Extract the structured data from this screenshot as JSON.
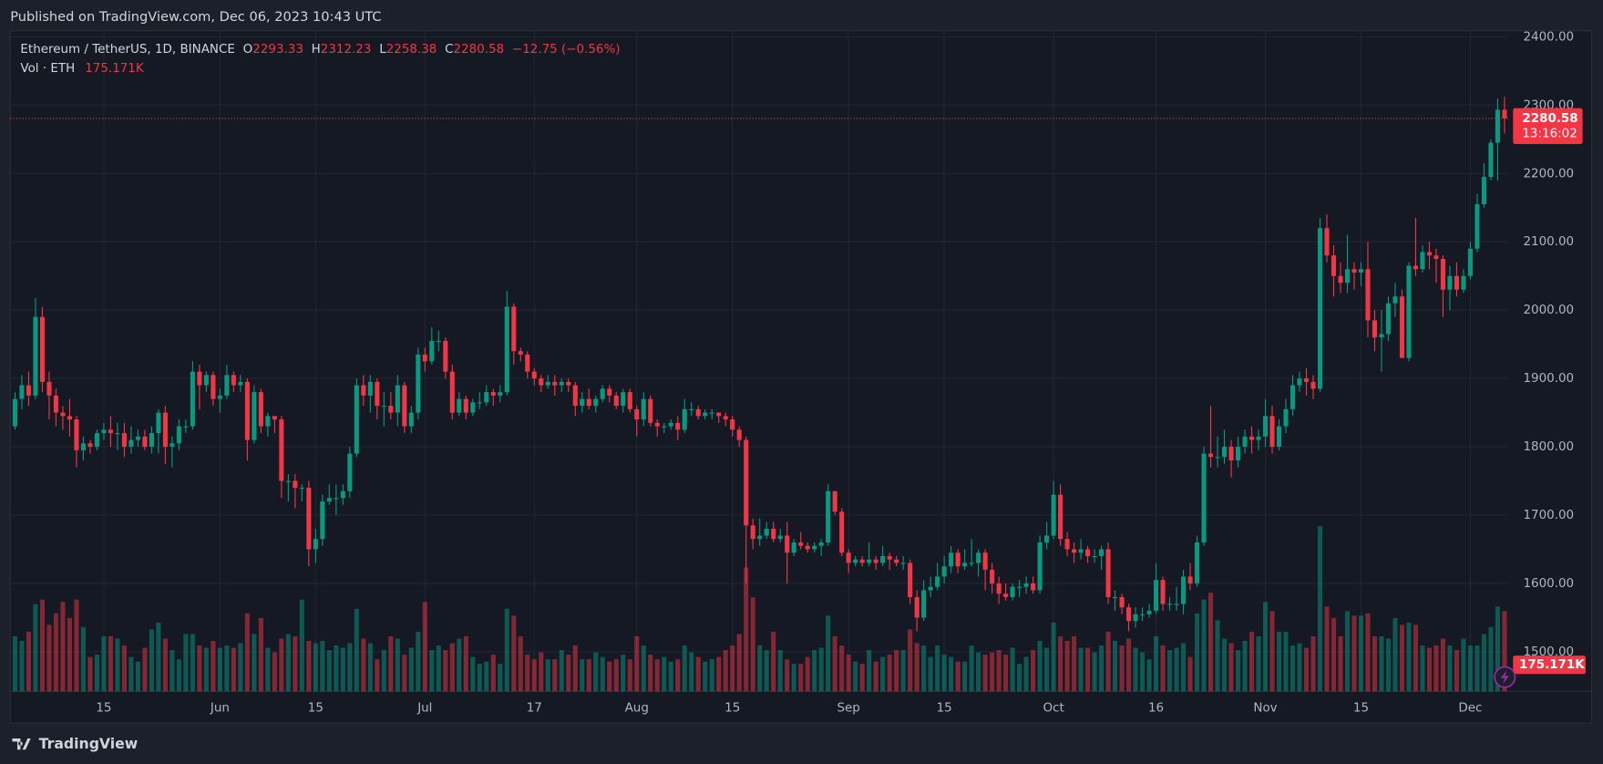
{
  "chart_data": {
    "type": "candlestick",
    "title": "Published on TradingView.com, Dec 06, 2023 10:43 UTC",
    "symbol": "Ethereum / TetherUS, 1D, BINANCE",
    "ohlc_labels": [
      "O",
      "H",
      "L",
      "C"
    ],
    "change": "−12.75 (−0.56%)",
    "volume_title": "Vol · ETH",
    "volume_last_label": "175.171K",
    "countdown": "13:16:02",
    "brand": "TradingView",
    "up_color": "#089981",
    "down_color": "#f23645",
    "grid": true,
    "ylim": [
      1442,
      2409
    ],
    "yticks": [
      {
        "value": 1500,
        "label": "1500.00"
      },
      {
        "value": 1600,
        "label": "1600.00"
      },
      {
        "value": 1700,
        "label": "1700.00"
      },
      {
        "value": 1800,
        "label": "1800.00"
      },
      {
        "value": 1900,
        "label": "1900.00"
      },
      {
        "value": 2000,
        "label": "2000.00"
      },
      {
        "value": 2100,
        "label": "2100.00"
      },
      {
        "value": 2200,
        "label": "2200.00"
      },
      {
        "value": 2300,
        "label": "2300.00"
      },
      {
        "value": 2400,
        "label": "2400.00"
      }
    ],
    "xlim": [
      -0.7,
      218.5
    ],
    "xticks": [
      {
        "value": 13,
        "label": "15"
      },
      {
        "value": 30,
        "label": "Jun"
      },
      {
        "value": 44,
        "label": "15"
      },
      {
        "value": 60,
        "label": "Jul"
      },
      {
        "value": 76,
        "label": "17"
      },
      {
        "value": 91,
        "label": "Aug"
      },
      {
        "value": 105,
        "label": "15"
      },
      {
        "value": 122,
        "label": "Sep"
      },
      {
        "value": 136,
        "label": "15"
      },
      {
        "value": 152,
        "label": "Oct"
      },
      {
        "value": 167,
        "label": "16"
      },
      {
        "value": 183,
        "label": "Nov"
      },
      {
        "value": 197,
        "label": "15"
      },
      {
        "value": 213,
        "label": "Dec"
      }
    ],
    "open": [
      1830,
      1870,
      1890,
      1875,
      1990,
      1895,
      1875,
      1850,
      1845,
      1840,
      1795,
      1805,
      1800,
      1820,
      1825,
      1820,
      1820,
      1800,
      1810,
      1815,
      1800,
      1820,
      1850,
      1800,
      1805,
      1830,
      1830,
      1910,
      1890,
      1905,
      1870,
      1875,
      1905,
      1890,
      1895,
      1810,
      1880,
      1830,
      1845,
      1840,
      1750,
      1750,
      1740,
      1740,
      1650,
      1665,
      1720,
      1725,
      1725,
      1735,
      1790,
      1890,
      1875,
      1895,
      1860,
      1860,
      1850,
      1890,
      1830,
      1850,
      1935,
      1925,
      1955,
      1955,
      1910,
      1850,
      1870,
      1850,
      1865,
      1865,
      1880,
      1875,
      1880,
      2005,
      1940,
      1935,
      1910,
      1900,
      1890,
      1895,
      1890,
      1895,
      1890,
      1860,
      1870,
      1860,
      1870,
      1885,
      1875,
      1860,
      1880,
      1855,
      1840,
      1870,
      1835,
      1830,
      1830,
      1835,
      1825,
      1855,
      1855,
      1845,
      1850,
      1850,
      1845,
      1840,
      1825,
      1810,
      1685,
      1665,
      1670,
      1680,
      1665,
      1670,
      1645,
      1660,
      1655,
      1650,
      1655,
      1660,
      1735,
      1705,
      1645,
      1630,
      1635,
      1630,
      1635,
      1630,
      1640,
      1635,
      1630,
      1630,
      1580,
      1550,
      1590,
      1595,
      1610,
      1625,
      1645,
      1625,
      1630,
      1630,
      1645,
      1620,
      1600,
      1585,
      1580,
      1595,
      1595,
      1600,
      1590,
      1660,
      1670,
      1730,
      1665,
      1650,
      1645,
      1650,
      1640,
      1640,
      1650,
      1580,
      1580,
      1565,
      1545,
      1555,
      1555,
      1560,
      1605,
      1570,
      1570,
      1570,
      1610,
      1600,
      1660,
      1790,
      1785,
      1785,
      1800,
      1780,
      1800,
      1815,
      1810,
      1815,
      1845,
      1800,
      1830,
      1855,
      1890,
      1900,
      1895,
      1885,
      2120,
      2080,
      2050,
      2040,
      2060,
      2055,
      2060,
      1985,
      1960,
      1965,
      2010,
      2020,
      1930,
      2065,
      2060,
      2085,
      2080,
      2075,
      2030,
      2050,
      2030,
      2050,
      2090,
      2155,
      2195,
      2245,
      2293.33
    ],
    "high": [
      1880,
      1905,
      1910,
      2018,
      2005,
      1910,
      1885,
      1860,
      1870,
      1845,
      1815,
      1810,
      1825,
      1835,
      1845,
      1835,
      1835,
      1830,
      1825,
      1825,
      1830,
      1855,
      1860,
      1815,
      1840,
      1840,
      1925,
      1920,
      1910,
      1910,
      1885,
      1920,
      1910,
      1905,
      1900,
      1890,
      1885,
      1850,
      1845,
      1845,
      1760,
      1760,
      1745,
      1750,
      1680,
      1730,
      1745,
      1745,
      1745,
      1800,
      1900,
      1905,
      1905,
      1900,
      1880,
      1880,
      1905,
      1895,
      1860,
      1945,
      1945,
      1975,
      1970,
      1960,
      1920,
      1880,
      1875,
      1870,
      1880,
      1890,
      1885,
      1890,
      2028,
      2010,
      1945,
      1940,
      1915,
      1905,
      1905,
      1905,
      1900,
      1900,
      1895,
      1880,
      1885,
      1875,
      1890,
      1890,
      1880,
      1885,
      1885,
      1860,
      1880,
      1875,
      1840,
      1835,
      1840,
      1845,
      1870,
      1865,
      1860,
      1855,
      1855,
      1850,
      1850,
      1845,
      1830,
      1815,
      1695,
      1695,
      1690,
      1690,
      1680,
      1690,
      1665,
      1675,
      1660,
      1660,
      1665,
      1745,
      1735,
      1710,
      1650,
      1640,
      1640,
      1660,
      1640,
      1655,
      1645,
      1640,
      1640,
      1635,
      1590,
      1605,
      1610,
      1630,
      1640,
      1655,
      1650,
      1650,
      1665,
      1650,
      1650,
      1630,
      1610,
      1600,
      1600,
      1605,
      1610,
      1610,
      1670,
      1690,
      1750,
      1745,
      1675,
      1660,
      1665,
      1655,
      1650,
      1655,
      1660,
      1590,
      1585,
      1570,
      1565,
      1565,
      1570,
      1630,
      1610,
      1580,
      1595,
      1620,
      1630,
      1670,
      1800,
      1860,
      1815,
      1825,
      1810,
      1815,
      1825,
      1830,
      1825,
      1870,
      1860,
      1840,
      1870,
      1905,
      1910,
      1915,
      1905,
      2135,
      2140,
      2095,
      2070,
      2110,
      2070,
      2070,
      2100,
      2000,
      2000,
      2020,
      2040,
      2030,
      2070,
      2135,
      2095,
      2100,
      2090,
      2080,
      2065,
      2070,
      2060,
      2100,
      2170,
      2215,
      2250,
      2310,
      2312.23
    ],
    "low": [
      1825,
      1855,
      1860,
      1870,
      1880,
      1840,
      1830,
      1825,
      1815,
      1770,
      1780,
      1790,
      1795,
      1810,
      1800,
      1795,
      1785,
      1790,
      1800,
      1795,
      1790,
      1790,
      1775,
      1770,
      1795,
      1820,
      1825,
      1855,
      1880,
      1860,
      1850,
      1870,
      1880,
      1880,
      1780,
      1805,
      1820,
      1815,
      1820,
      1725,
      1720,
      1710,
      1720,
      1625,
      1630,
      1655,
      1715,
      1700,
      1715,
      1725,
      1785,
      1860,
      1850,
      1840,
      1830,
      1840,
      1830,
      1820,
      1820,
      1840,
      1910,
      1920,
      1940,
      1900,
      1840,
      1845,
      1840,
      1845,
      1855,
      1860,
      1860,
      1865,
      1875,
      1920,
      1925,
      1900,
      1890,
      1880,
      1885,
      1875,
      1880,
      1880,
      1845,
      1850,
      1855,
      1850,
      1865,
      1865,
      1855,
      1850,
      1850,
      1815,
      1830,
      1830,
      1815,
      1820,
      1825,
      1810,
      1820,
      1845,
      1840,
      1840,
      1840,
      1835,
      1830,
      1815,
      1800,
      1600,
      1650,
      1655,
      1665,
      1660,
      1660,
      1600,
      1640,
      1650,
      1645,
      1645,
      1640,
      1655,
      1700,
      1640,
      1615,
      1625,
      1625,
      1625,
      1620,
      1625,
      1620,
      1625,
      1620,
      1570,
      1530,
      1545,
      1580,
      1590,
      1600,
      1615,
      1615,
      1620,
      1625,
      1610,
      1590,
      1585,
      1570,
      1575,
      1575,
      1580,
      1585,
      1585,
      1585,
      1650,
      1665,
      1655,
      1640,
      1630,
      1635,
      1630,
      1630,
      1620,
      1570,
      1560,
      1555,
      1530,
      1535,
      1545,
      1550,
      1555,
      1560,
      1560,
      1560,
      1555,
      1590,
      1595,
      1655,
      1770,
      1770,
      1775,
      1755,
      1770,
      1790,
      1790,
      1795,
      1800,
      1790,
      1795,
      1820,
      1845,
      1880,
      1875,
      1870,
      1880,
      2070,
      2020,
      2025,
      2025,
      2030,
      2035,
      1960,
      1940,
      1910,
      1955,
      1990,
      1930,
      1925,
      2050,
      2055,
      2060,
      2040,
      1990,
      2000,
      2020,
      2025,
      2045,
      2085,
      2150,
      2190,
      2190,
      2258.38
    ],
    "close": [
      1870,
      1890,
      1875,
      1990,
      1895,
      1875,
      1850,
      1845,
      1840,
      1795,
      1805,
      1800,
      1820,
      1825,
      1820,
      1820,
      1800,
      1810,
      1815,
      1800,
      1820,
      1850,
      1800,
      1805,
      1830,
      1830,
      1910,
      1890,
      1905,
      1870,
      1875,
      1905,
      1890,
      1895,
      1810,
      1880,
      1830,
      1845,
      1840,
      1750,
      1750,
      1740,
      1740,
      1650,
      1665,
      1720,
      1725,
      1725,
      1735,
      1790,
      1890,
      1875,
      1895,
      1860,
      1860,
      1850,
      1890,
      1830,
      1850,
      1935,
      1925,
      1955,
      1955,
      1910,
      1850,
      1870,
      1850,
      1865,
      1865,
      1880,
      1875,
      1880,
      2005,
      1940,
      1935,
      1910,
      1900,
      1890,
      1895,
      1890,
      1895,
      1890,
      1860,
      1870,
      1860,
      1870,
      1885,
      1875,
      1860,
      1880,
      1855,
      1840,
      1870,
      1835,
      1830,
      1830,
      1835,
      1825,
      1855,
      1855,
      1845,
      1850,
      1850,
      1845,
      1840,
      1825,
      1810,
      1685,
      1665,
      1670,
      1680,
      1665,
      1670,
      1645,
      1660,
      1655,
      1650,
      1655,
      1660,
      1735,
      1705,
      1645,
      1630,
      1635,
      1630,
      1635,
      1630,
      1640,
      1635,
      1630,
      1630,
      1580,
      1550,
      1590,
      1595,
      1610,
      1625,
      1645,
      1625,
      1630,
      1630,
      1645,
      1620,
      1600,
      1585,
      1580,
      1595,
      1595,
      1600,
      1590,
      1660,
      1670,
      1730,
      1665,
      1650,
      1645,
      1650,
      1640,
      1640,
      1650,
      1580,
      1580,
      1565,
      1545,
      1555,
      1555,
      1560,
      1605,
      1570,
      1570,
      1570,
      1610,
      1600,
      1660,
      1790,
      1785,
      1785,
      1800,
      1780,
      1800,
      1815,
      1810,
      1815,
      1845,
      1800,
      1830,
      1855,
      1890,
      1900,
      1895,
      1885,
      2120,
      2080,
      2050,
      2040,
      2060,
      2055,
      2060,
      1985,
      1960,
      1965,
      2010,
      2020,
      1930,
      2065,
      2060,
      2085,
      2080,
      2075,
      2030,
      2050,
      2030,
      2050,
      2090,
      2155,
      2195,
      2245,
      2293.33,
      2280.58
    ],
    "volume": [
      120,
      110,
      130,
      190,
      200,
      145,
      170,
      195,
      160,
      200,
      140,
      75,
      80,
      120,
      120,
      115,
      100,
      75,
      65,
      95,
      135,
      150,
      115,
      90,
      70,
      125,
      125,
      100,
      95,
      110,
      95,
      100,
      95,
      105,
      170,
      125,
      160,
      95,
      85,
      115,
      125,
      120,
      200,
      110,
      105,
      110,
      90,
      100,
      95,
      105,
      180,
      115,
      105,
      70,
      90,
      120,
      115,
      80,
      95,
      130,
      195,
      90,
      100,
      90,
      105,
      115,
      120,
      75,
      60,
      65,
      80,
      60,
      180,
      165,
      120,
      80,
      70,
      85,
      70,
      70,
      90,
      80,
      100,
      70,
      70,
      85,
      75,
      65,
      70,
      80,
      70,
      120,
      100,
      80,
      70,
      75,
      65,
      70,
      100,
      85,
      75,
      65,
      70,
      75,
      90,
      100,
      125,
      270,
      205,
      100,
      90,
      130,
      90,
      70,
      60,
      60,
      75,
      90,
      95,
      165,
      120,
      100,
      80,
      65,
      60,
      90,
      65,
      75,
      80,
      90,
      90,
      135,
      105,
      100,
      75,
      100,
      80,
      75,
      65,
      65,
      100,
      85,
      80,
      85,
      90,
      80,
      95,
      60,
      75,
      90,
      110,
      95,
      150,
      120,
      110,
      120,
      95,
      95,
      85,
      100,
      130,
      110,
      100,
      115,
      95,
      85,
      70,
      120,
      100,
      90,
      95,
      105,
      75,
      170,
      200,
      215,
      155,
      115,
      105,
      90,
      110,
      130,
      120,
      195,
      175,
      130,
      130,
      100,
      105,
      95,
      120,
      360,
      185,
      160,
      120,
      175,
      165,
      165,
      170,
      120,
      120,
      115,
      160,
      145,
      150,
      145,
      100,
      95,
      100,
      115,
      100,
      90,
      115,
      100,
      100,
      125,
      140,
      185,
      175.171
    ]
  }
}
